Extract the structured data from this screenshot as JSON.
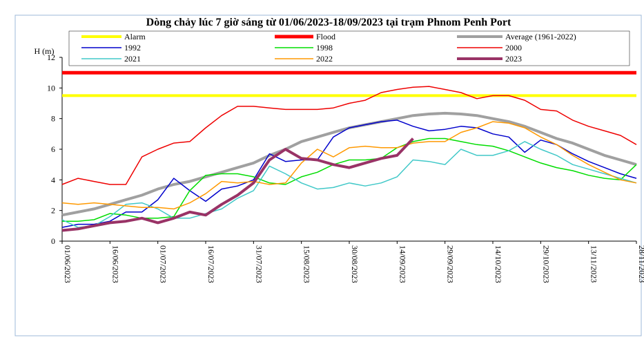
{
  "chart_data": {
    "type": "line",
    "title": "Dòng chảy lúc 7 giờ sáng từ 01/06/2023-18/09/2023 tại trạm Phnom Penh Port",
    "y_label": "H (m)",
    "categories": [
      "01/06/2023",
      null,
      null,
      "16/06/2023",
      null,
      null,
      "01/07/2023",
      null,
      null,
      "16/07/2023",
      null,
      null,
      "31/07/2023",
      null,
      null,
      "15/08/2023",
      null,
      null,
      "30/08/2023",
      null,
      null,
      "14/09/2023",
      null,
      null,
      "29/09/2023",
      null,
      null,
      "14/10/2023",
      null,
      null,
      "29/10/2023",
      null,
      null,
      "13/11/2023",
      null,
      null,
      "28/11/2023"
    ],
    "ylim": [
      0,
      12
    ],
    "yticks": [
      0,
      2,
      4,
      6,
      8,
      10,
      12
    ],
    "grid": false,
    "legend": "top",
    "series": [
      {
        "name": "Alarm",
        "color": "#ffff00",
        "width": 4,
        "values": [
          9.5,
          9.5,
          9.5,
          9.5,
          9.5,
          9.5,
          9.5,
          9.5,
          9.5,
          9.5,
          9.5,
          9.5,
          9.5,
          9.5,
          9.5,
          9.5,
          9.5,
          9.5,
          9.5,
          9.5,
          9.5,
          9.5,
          9.5,
          9.5,
          9.5,
          9.5,
          9.5,
          9.5,
          9.5,
          9.5,
          9.5,
          9.5,
          9.5,
          9.5,
          9.5,
          9.5,
          9.5
        ]
      },
      {
        "name": "Flood",
        "color": "#ff0000",
        "width": 5,
        "values": [
          11,
          11,
          11,
          11,
          11,
          11,
          11,
          11,
          11,
          11,
          11,
          11,
          11,
          11,
          11,
          11,
          11,
          11,
          11,
          11,
          11,
          11,
          11,
          11,
          11,
          11,
          11,
          11,
          11,
          11,
          11,
          11,
          11,
          11,
          11,
          11,
          11
        ]
      },
      {
        "name": "Average (1961-2022)",
        "color": "#a0a0a0",
        "width": 4,
        "values": [
          1.7,
          1.9,
          2.1,
          2.4,
          2.7,
          3.0,
          3.4,
          3.7,
          3.9,
          4.2,
          4.5,
          4.8,
          5.1,
          5.6,
          6.0,
          6.5,
          6.8,
          7.1,
          7.4,
          7.6,
          7.8,
          8.0,
          8.2,
          8.3,
          8.35,
          8.3,
          8.2,
          8.0,
          7.8,
          7.5,
          7.1,
          6.7,
          6.4,
          6.0,
          5.6,
          5.3,
          5.0
        ]
      },
      {
        "name": "1992",
        "color": "#0000cc",
        "width": 1.5,
        "values": [
          0.9,
          1.1,
          1.1,
          1.3,
          1.9,
          1.9,
          2.7,
          4.1,
          3.3,
          2.6,
          3.4,
          3.6,
          4.0,
          5.7,
          5.2,
          5.3,
          5.3,
          6.8,
          7.4,
          7.6,
          7.8,
          7.9,
          7.5,
          7.2,
          7.3,
          7.5,
          7.4,
          7.0,
          6.8,
          5.8,
          6.6,
          6.3,
          5.7,
          5.2,
          4.8,
          4.4,
          4.1
        ]
      },
      {
        "name": "1998",
        "color": "#00dd00",
        "width": 1.5,
        "values": [
          1.3,
          1.3,
          1.4,
          1.8,
          1.7,
          1.5,
          1.5,
          1.6,
          3.3,
          4.3,
          4.4,
          4.4,
          4.2,
          3.8,
          3.7,
          4.2,
          4.5,
          5.0,
          5.3,
          5.3,
          5.4,
          6.1,
          6.5,
          6.7,
          6.7,
          6.5,
          6.3,
          6.2,
          5.9,
          5.5,
          5.1,
          4.8,
          4.6,
          4.3,
          4.1,
          4.0,
          5.0
        ]
      },
      {
        "name": "2000",
        "color": "#ee0000",
        "width": 1.5,
        "values": [
          3.7,
          4.1,
          3.9,
          3.7,
          3.7,
          5.5,
          6.0,
          6.4,
          6.5,
          7.4,
          8.2,
          8.8,
          8.8,
          8.7,
          8.6,
          8.6,
          8.6,
          8.7,
          9.0,
          9.2,
          9.7,
          9.9,
          10.05,
          10.1,
          9.9,
          9.7,
          9.3,
          9.5,
          9.5,
          9.2,
          8.6,
          8.5,
          7.9,
          7.5,
          7.2,
          6.9,
          6.3
        ]
      },
      {
        "name": "2021",
        "color": "#40c8c8",
        "width": 1.5,
        "values": [
          1.4,
          0.9,
          1.0,
          1.6,
          2.4,
          2.5,
          2.1,
          1.5,
          1.5,
          1.8,
          2.1,
          2.8,
          3.3,
          4.9,
          4.4,
          3.8,
          3.4,
          3.5,
          3.8,
          3.6,
          3.8,
          4.2,
          5.3,
          5.2,
          5.0,
          6.0,
          5.6,
          5.6,
          5.9,
          6.5,
          6.0,
          5.6,
          5.0,
          4.7,
          4.4,
          4.1,
          3.8
        ]
      },
      {
        "name": "2022",
        "color": "#ff9900",
        "width": 1.5,
        "values": [
          2.5,
          2.4,
          2.5,
          2.4,
          2.3,
          2.2,
          2.2,
          2.1,
          2.5,
          3.1,
          3.9,
          3.8,
          3.9,
          3.7,
          3.8,
          5.1,
          6.0,
          5.5,
          6.1,
          6.2,
          6.1,
          6.1,
          6.4,
          6.5,
          6.5,
          7.1,
          7.4,
          7.8,
          7.7,
          7.4,
          6.8,
          6.3,
          5.6,
          5.0,
          4.5,
          4.0,
          3.8
        ]
      },
      {
        "name": "2023",
        "color": "#993366",
        "width": 4,
        "values": [
          0.7,
          0.8,
          1.0,
          1.2,
          1.3,
          1.5,
          1.2,
          1.5,
          1.9,
          1.7,
          2.4,
          3.0,
          3.8,
          5.3,
          6.0,
          5.4,
          5.3,
          5.0,
          4.8,
          5.1,
          5.4,
          5.6,
          6.7,
          null,
          null,
          null,
          null,
          null,
          null,
          null,
          null,
          null,
          null,
          null,
          null,
          null,
          null
        ]
      }
    ]
  }
}
